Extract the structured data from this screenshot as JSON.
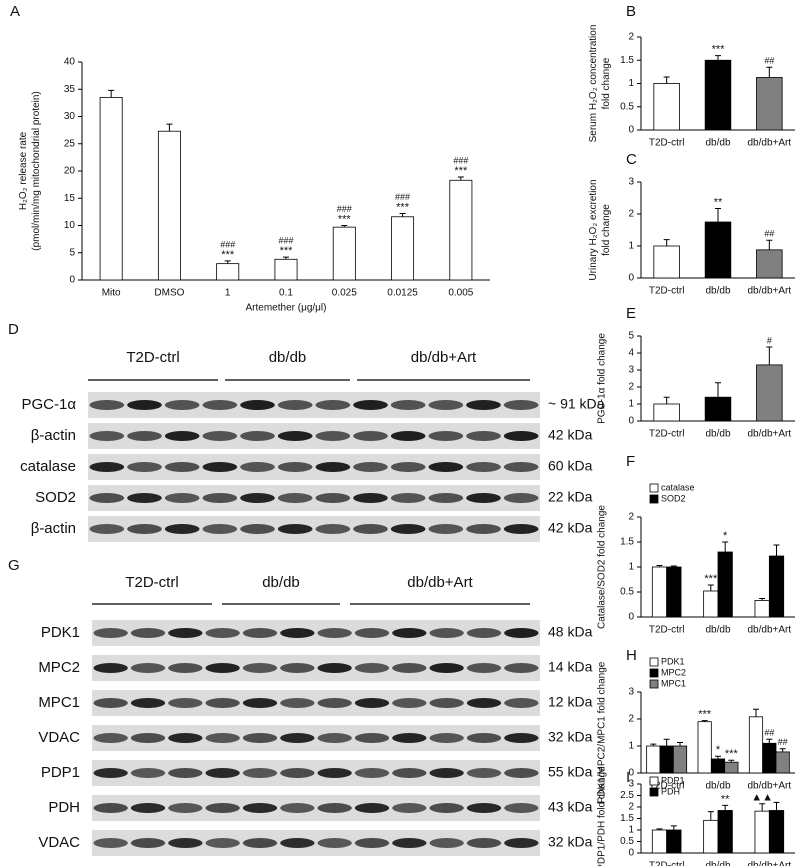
{
  "chart_data": [
    {
      "type": "bar",
      "panel": "A",
      "ylabel": [
        "H₂O₂ release rate",
        "(pmol/min/mg mitochondrial protein)"
      ],
      "xlabel": "Artemether  (μg/μl)",
      "categories": [
        "Mito",
        "DMSO",
        "1",
        "0.1",
        "0.025",
        "0.0125",
        "0.005"
      ],
      "ylim": [
        0,
        40
      ],
      "yticks": [
        0,
        5,
        10,
        15,
        20,
        25,
        30,
        35,
        40
      ],
      "series": [
        {
          "color": "#ffffff",
          "values": [
            33.5,
            27.3,
            3.0,
            3.8,
            9.7,
            11.6,
            18.3
          ],
          "errors": [
            1.3,
            1.3,
            0.5,
            0.4,
            0.3,
            0.6,
            0.6
          ],
          "annotations": [
            null,
            null,
            [
              "###",
              "***"
            ],
            [
              "###",
              "***"
            ],
            [
              "###",
              "***"
            ],
            [
              "###",
              "***"
            ],
            [
              "###",
              "***"
            ]
          ]
        }
      ]
    },
    {
      "type": "bar",
      "panel": "B",
      "ylabel": [
        "Serum H₂O₂ concentration",
        "fold change"
      ],
      "categories": [
        "T2D-ctrl",
        "db/db",
        "db/db+Art"
      ],
      "ylim": [
        0,
        2
      ],
      "yticks": [
        0,
        0.5,
        1,
        1.5,
        2
      ],
      "series": [
        {
          "colors": [
            "#ffffff",
            "#000000",
            "#808080"
          ],
          "values": [
            1.0,
            1.5,
            1.13
          ],
          "errors": [
            0.14,
            0.1,
            0.22
          ],
          "annotations": [
            null,
            [
              "***"
            ],
            [
              "##"
            ]
          ]
        }
      ]
    },
    {
      "type": "bar",
      "panel": "C",
      "ylabel": [
        "Urinary H₂O₂ excretion",
        "fold change"
      ],
      "categories": [
        "T2D-ctrl",
        "db/db",
        "db/db+Art"
      ],
      "ylim": [
        0,
        3
      ],
      "yticks": [
        0,
        1,
        2,
        3
      ],
      "series": [
        {
          "colors": [
            "#ffffff",
            "#000000",
            "#808080"
          ],
          "values": [
            1.0,
            1.75,
            0.88
          ],
          "errors": [
            0.2,
            0.42,
            0.3
          ],
          "annotations": [
            null,
            [
              "**"
            ],
            [
              "##"
            ]
          ]
        }
      ]
    },
    {
      "type": "bar",
      "panel": "E",
      "ylabel": [
        "PGC-1α fold change"
      ],
      "categories": [
        "T2D-ctrl",
        "db/db",
        "db/db+Art"
      ],
      "ylim": [
        0,
        5
      ],
      "yticks": [
        0,
        1,
        2,
        3,
        4,
        5
      ],
      "series": [
        {
          "colors": [
            "#ffffff",
            "#000000",
            "#808080"
          ],
          "values": [
            1.0,
            1.4,
            3.3
          ],
          "errors": [
            0.4,
            0.85,
            1.05
          ],
          "annotations": [
            null,
            null,
            [
              "#"
            ]
          ]
        }
      ]
    },
    {
      "type": "bar",
      "panel": "F",
      "ylabel": [
        "Catalase/SOD2 fold change"
      ],
      "categories": [
        "T2D-ctrl",
        "db/db",
        "db/db+Art"
      ],
      "ylim": [
        0,
        2
      ],
      "yticks": [
        0,
        0.5,
        1,
        1.5,
        2
      ],
      "series": [
        {
          "name": "catalase",
          "color": "#ffffff",
          "values": [
            1.0,
            0.52,
            0.33
          ],
          "errors": [
            0.03,
            0.12,
            0.04
          ],
          "annotations": [
            null,
            [
              "***"
            ],
            null
          ]
        },
        {
          "name": "SOD2",
          "color": "#000000",
          "values": [
            1.0,
            1.3,
            1.22
          ],
          "errors": [
            0.02,
            0.2,
            0.22
          ],
          "annotations": [
            null,
            [
              "*"
            ],
            null
          ]
        }
      ]
    },
    {
      "type": "bar",
      "panel": "H",
      "ylabel": [
        "PDK1/MPC2/MPC1 fold change"
      ],
      "categories": [
        "T2D-ctrl",
        "db/db",
        "db/db+Art"
      ],
      "ylim": [
        0,
        3
      ],
      "yticks": [
        0,
        1,
        2,
        3
      ],
      "series": [
        {
          "name": "PDK1",
          "color": "#ffffff",
          "values": [
            1.0,
            1.9,
            2.08
          ],
          "errors": [
            0.07,
            0.04,
            0.28
          ],
          "annotations": [
            null,
            [
              "***"
            ],
            null
          ]
        },
        {
          "name": "MPC2",
          "color": "#000000",
          "values": [
            1.0,
            0.52,
            1.1
          ],
          "errors": [
            0.25,
            0.1,
            0.15
          ],
          "annotations": [
            null,
            [
              "*"
            ],
            [
              "##"
            ]
          ]
        },
        {
          "name": "MPC1",
          "color": "#808080",
          "values": [
            1.0,
            0.4,
            0.78
          ],
          "errors": [
            0.13,
            0.07,
            0.12
          ],
          "annotations": [
            null,
            [
              "***"
            ],
            [
              "##"
            ]
          ]
        }
      ]
    },
    {
      "type": "bar",
      "panel": "I",
      "ylabel": [
        "PDP1/PDH fold change"
      ],
      "categories": [
        "T2D-ctrl",
        "db/db",
        "db/db+Art"
      ],
      "ylim": [
        0,
        3
      ],
      "yticks": [
        0,
        0.5,
        1,
        1.5,
        2,
        2.5,
        3
      ],
      "series": [
        {
          "name": "PDP1",
          "color": "#ffffff",
          "values": [
            1.0,
            1.42,
            1.82
          ],
          "errors": [
            0.05,
            0.38,
            0.32
          ],
          "annotations": [
            null,
            null,
            [
              "▲▲"
            ]
          ]
        },
        {
          "name": "PDH",
          "color": "#000000",
          "values": [
            1.0,
            1.85,
            1.85
          ],
          "errors": [
            0.18,
            0.22,
            0.35
          ],
          "annotations": [
            null,
            [
              "**"
            ],
            null
          ]
        }
      ]
    }
  ],
  "blots": [
    {
      "panel": "D",
      "groups": [
        "T2D-ctrl",
        "db/db",
        "db/db+Art"
      ],
      "rows": [
        {
          "label": "PGC-1α",
          "size": "~ 91 kDa"
        },
        {
          "label": "β-actin",
          "size": "42 kDa"
        },
        {
          "label": "catalase",
          "size": "60 kDa"
        },
        {
          "label": "SOD2",
          "size": "22 kDa"
        },
        {
          "label": "β-actin",
          "size": "42 kDa"
        }
      ]
    },
    {
      "panel": "G",
      "groups": [
        "T2D-ctrl",
        "db/db",
        "db/db+Art"
      ],
      "rows": [
        {
          "label": "PDK1",
          "size": "48 kDa"
        },
        {
          "label": "MPC2",
          "size": "14 kDa"
        },
        {
          "label": "MPC1",
          "size": "12 kDa"
        },
        {
          "label": "VDAC",
          "size": "32 kDa"
        },
        {
          "label": "PDP1",
          "size": "55 kDa"
        },
        {
          "label": "PDH",
          "size": "43 kDa"
        },
        {
          "label": "VDAC",
          "size": "32 kDa"
        }
      ]
    }
  ]
}
